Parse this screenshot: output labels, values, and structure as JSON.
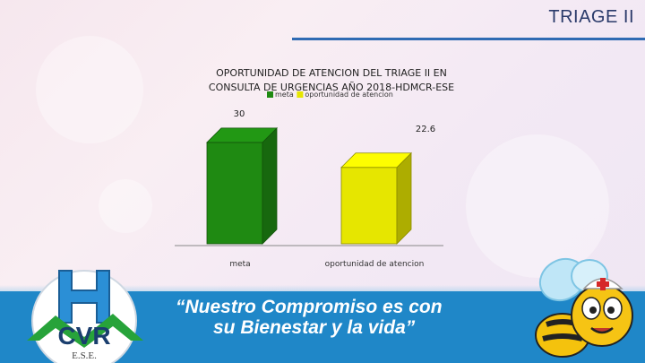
{
  "slide": {
    "title": "TRIAGE II",
    "slogan_line1": "“Nuestro Compromiso es con",
    "slogan_line2": "su Bienestar y la vida”",
    "logo_text": "CVR",
    "logo_subtext": "E.S.E."
  },
  "colors": {
    "accent": "#2f6bb3",
    "footer": "#1f87c8",
    "meta": "#1f8a12",
    "oportunidad": "#e6e600"
  },
  "chart_data": {
    "type": "bar",
    "title_line1": "OPORTUNIDAD DE ATENCION  DEL TRIAGE II EN",
    "title_line2": "CONSULTA DE URGENCIAS AÑO 2018-HDMCR-ESE",
    "categories": [
      "meta",
      "oportunidad de atencion"
    ],
    "series": [
      {
        "name": "meta",
        "values": [
          30,
          null
        ],
        "color": "#1f8a12"
      },
      {
        "name": "oportunidad de atencion",
        "values": [
          null,
          22.6
        ],
        "color": "#e6e600"
      }
    ],
    "data_labels": [
      "30",
      "22.6"
    ],
    "legend": {
      "placement": "top",
      "entries": [
        "meta",
        "oportunidad de atencion"
      ]
    },
    "ylim": [
      0,
      35
    ],
    "grid": false
  }
}
